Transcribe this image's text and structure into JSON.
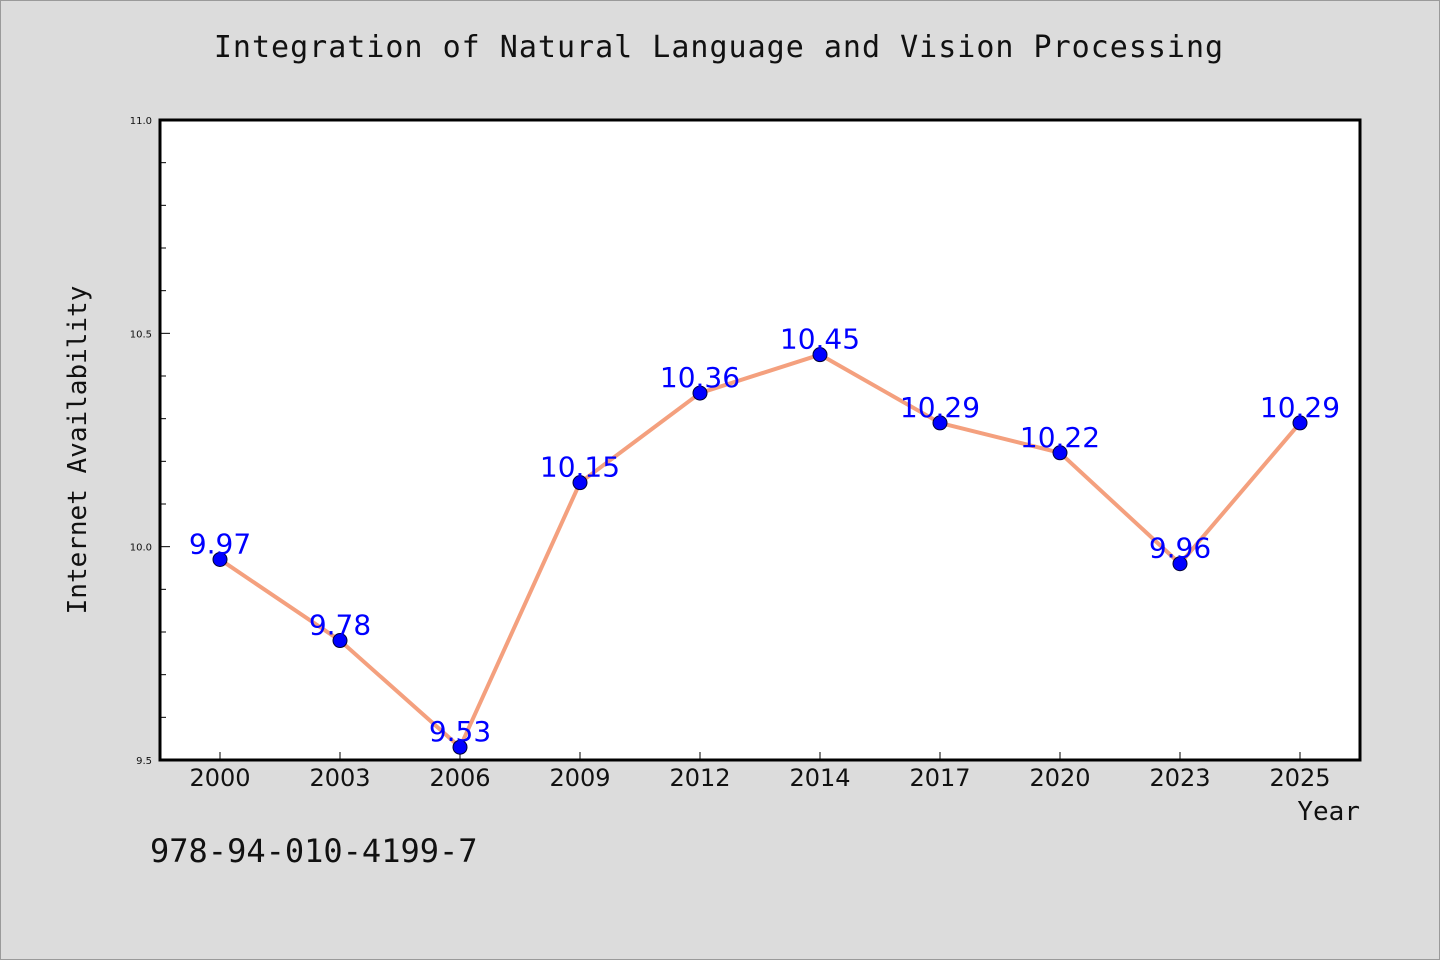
{
  "chart_data": {
    "type": "line",
    "title": "Integration of Natural Language and Vision Processing",
    "xlabel": "Year",
    "ylabel": "Internet Availability",
    "categories": [
      "2000",
      "2003",
      "2006",
      "2009",
      "2012",
      "2014",
      "2017",
      "2020",
      "2023",
      "2025"
    ],
    "values": [
      9.97,
      9.78,
      9.53,
      10.15,
      10.36,
      10.45,
      10.29,
      10.22,
      9.96,
      10.29
    ],
    "data_labels": [
      "9.97",
      "9.78",
      "9.53",
      "10.15",
      "10.36",
      "10.45",
      "10.29",
      "10.22",
      "9.96",
      "10.29"
    ],
    "ylim": [
      9.5,
      11.0
    ],
    "yticks": [
      "9.5",
      "10.0",
      "10.5",
      "11.0"
    ],
    "grid": false,
    "colors": {
      "line": "#f4a07e",
      "marker": "#0000ff",
      "label": "#0000ff",
      "background": "#dcdcdc",
      "plot_background": "#ffffff"
    }
  },
  "footer": {
    "code": "978-94-010-4199-7"
  }
}
